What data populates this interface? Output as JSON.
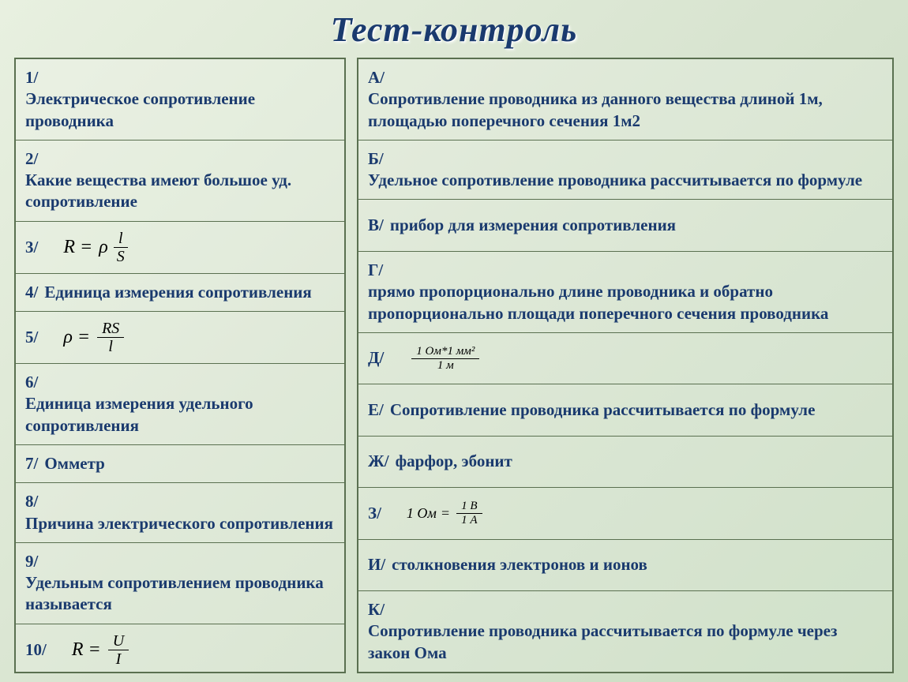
{
  "title": "Тест-контроль",
  "left": [
    {
      "prefix": "1/",
      "text": "Электрическое сопротивление проводника"
    },
    {
      "prefix": "2/",
      "text": "Какие вещества имеют большое уд. сопротивление"
    },
    {
      "prefix": "3/",
      "formula": {
        "lhs": "R",
        "rhs_prefix": "ρ",
        "num": "l",
        "den": "S"
      }
    },
    {
      "prefix": "4/",
      "text": "Единица измерения сопротивления"
    },
    {
      "prefix": "5/",
      "formula": {
        "lhs": "ρ",
        "num": "RS",
        "den": "l"
      }
    },
    {
      "prefix": "6/",
      "text": "Единица измерения удельного сопротивления"
    },
    {
      "prefix": "7/",
      "text": "Омметр"
    },
    {
      "prefix": "8/",
      "text": "Причина электрического сопротивления"
    },
    {
      "prefix": "9/",
      "text": "Удельным сопротивлением проводника называется"
    },
    {
      "prefix": "10/",
      "formula": {
        "lhs": "R",
        "num": "U",
        "den": "I"
      }
    }
  ],
  "right": [
    {
      "prefix": "А/",
      "text": "Сопротивление проводника из данного вещества длиной 1м, площадью поперечного сечения 1м2"
    },
    {
      "prefix": "Б/",
      "text": "Удельное сопротивление проводника рассчитывается по формуле"
    },
    {
      "prefix": "В/",
      "text": "прибор для измерения сопротивления"
    },
    {
      "prefix": "Г/",
      "text": "прямо пропорционально длине проводника и обратно пропорционально площади поперечного сечения проводника"
    },
    {
      "prefix": "Д/",
      "formula_small": {
        "num": "1 Ом*1 мм²",
        "den": "1 м"
      }
    },
    {
      "prefix": "Е/",
      "text": "Сопротивление проводника рассчитывается по формуле"
    },
    {
      "prefix": "Ж/",
      "text": "фарфор, эбонит"
    },
    {
      "prefix": "З/",
      "formula_small": {
        "lhs": "1 Ом",
        "num": "1 В",
        "den": "1 А"
      }
    },
    {
      "prefix": "И/",
      "text": "столкновения электронов и ионов"
    },
    {
      "prefix": "К/",
      "text": "Сопротивление проводника рассчитывается по формуле через закон Ома"
    }
  ],
  "colors": {
    "text": "#1a3a6e",
    "border": "#5a7050",
    "bg_top": "#e8f0e0",
    "bg_bottom": "#c8dcc0"
  }
}
